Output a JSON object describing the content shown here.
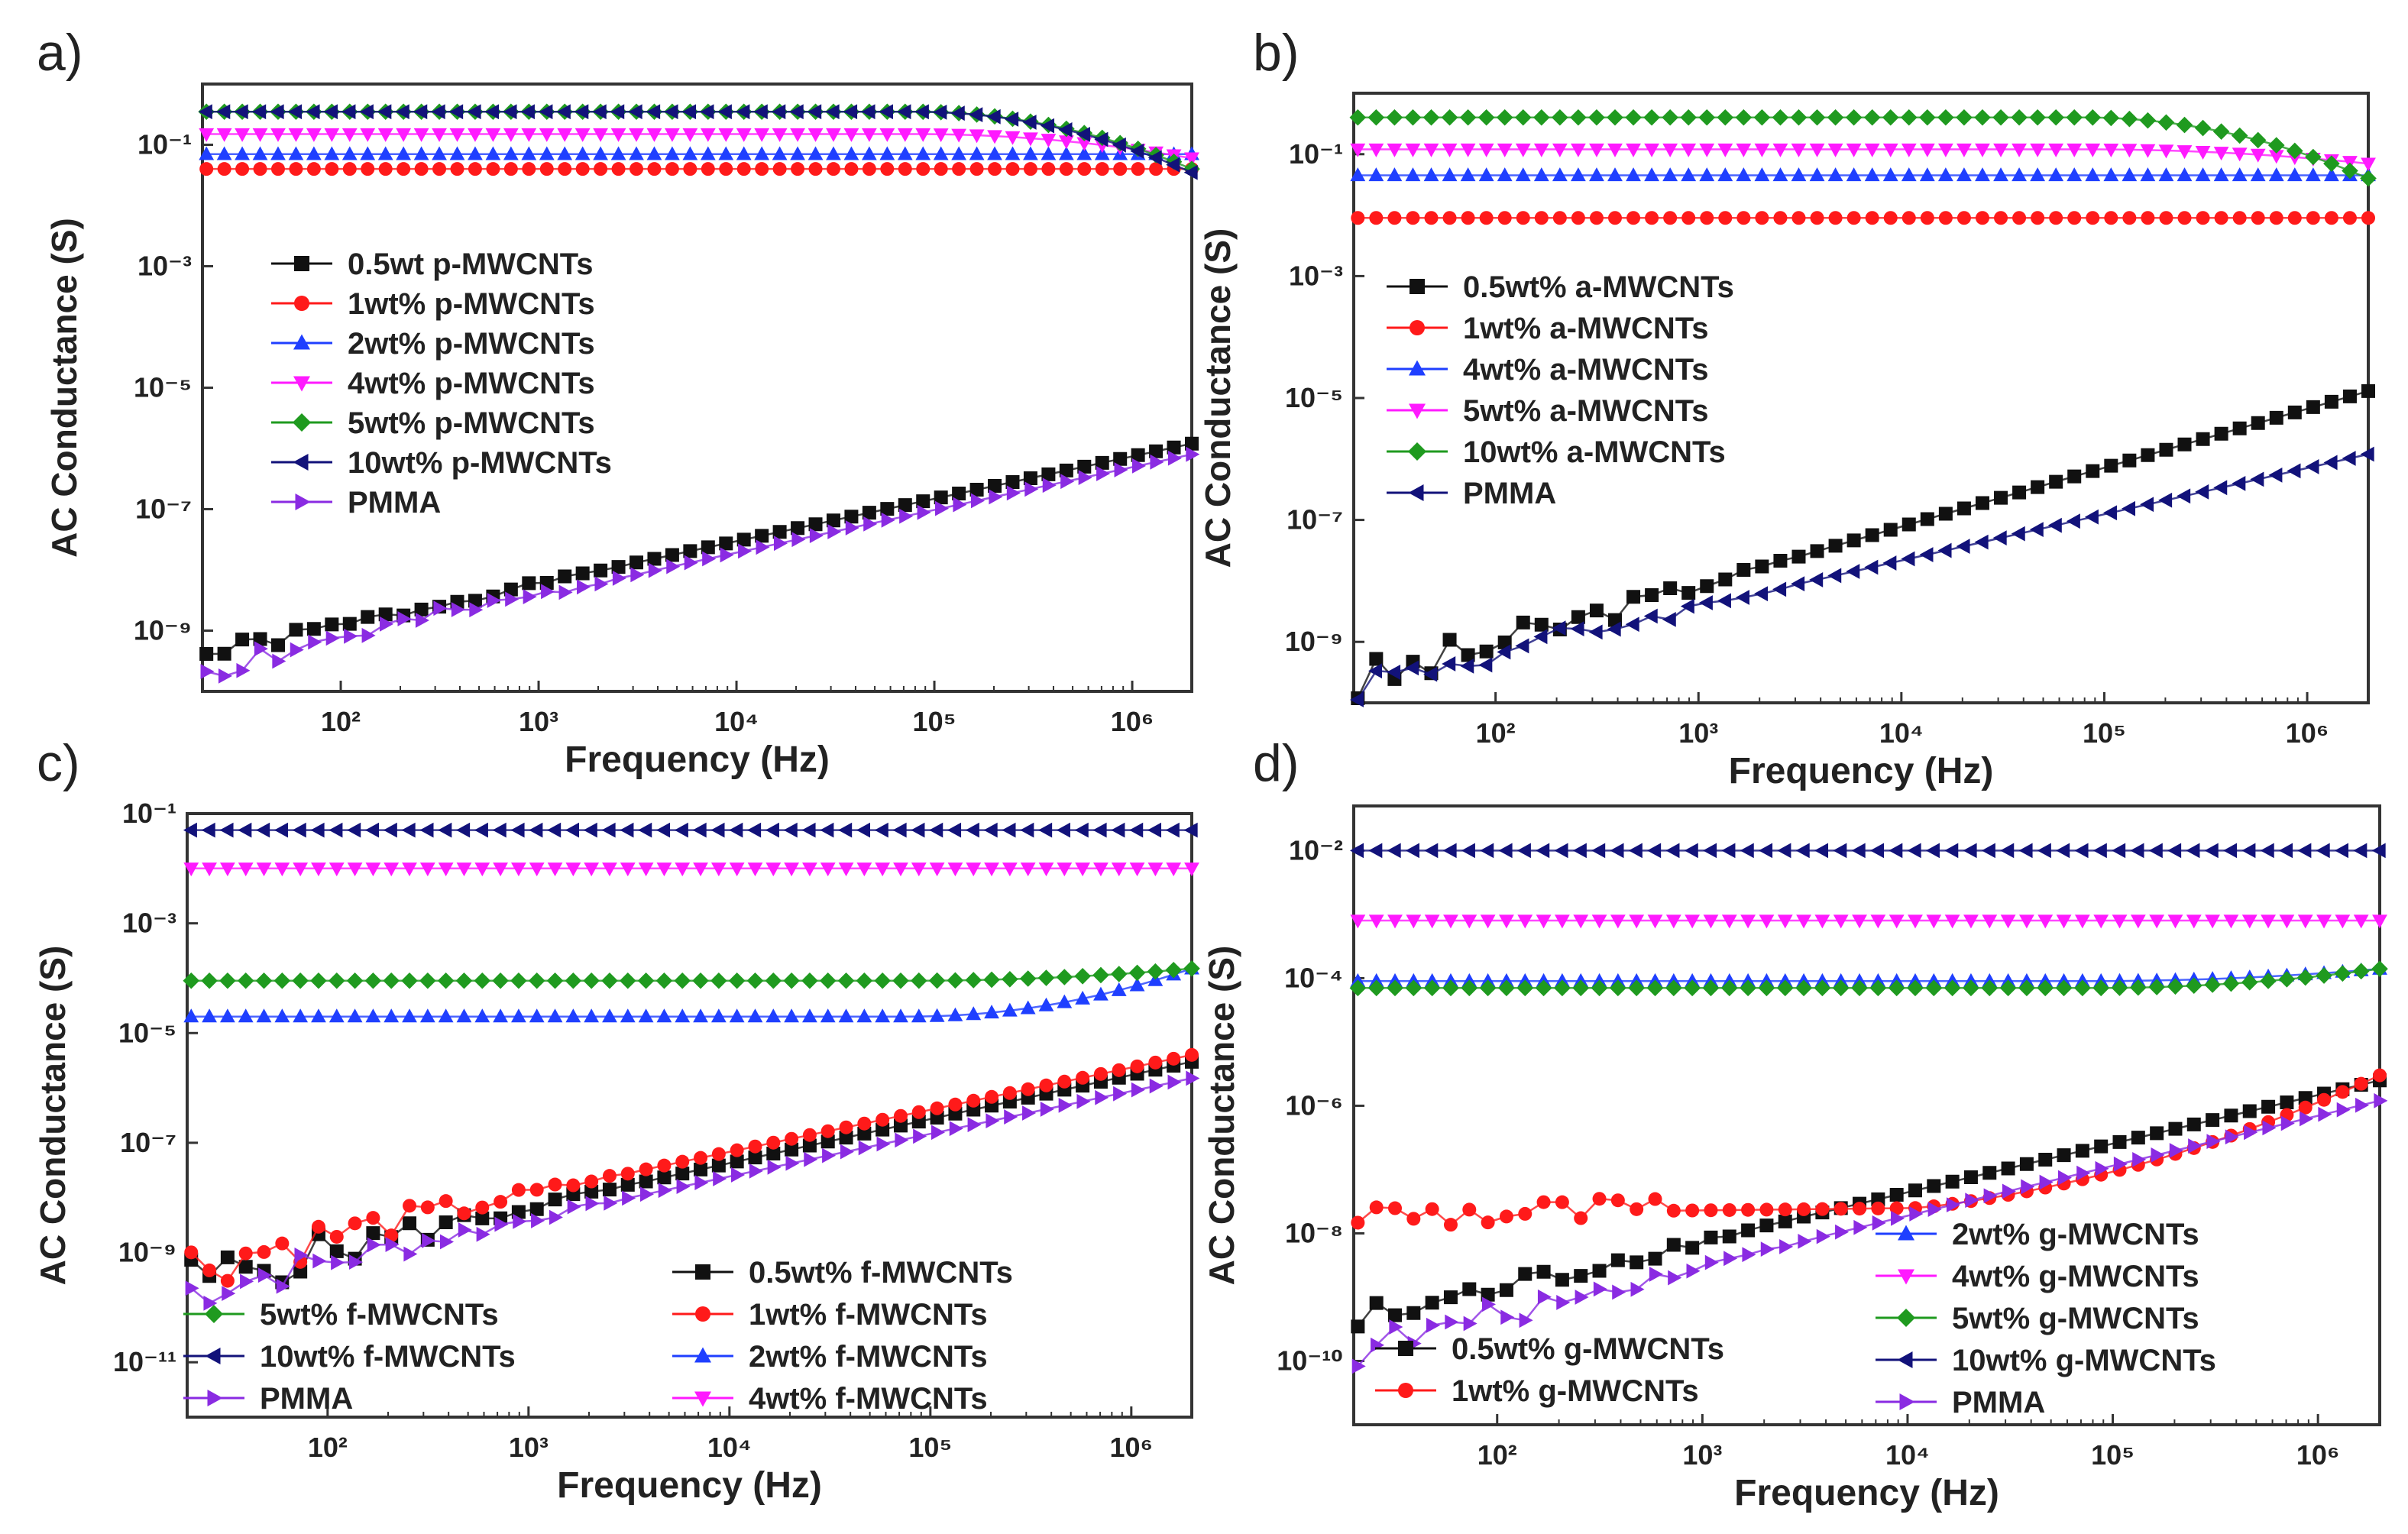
{
  "figure": {
    "background": "#ffffff",
    "axis_color": "#333333",
    "text_color": "#222222"
  },
  "colors": {
    "black": "#111111",
    "red": "#ff1a1a",
    "blue": "#1f3fff",
    "magenta": "#ff1aff",
    "green": "#1f9a1f",
    "navy": "#12127a",
    "violet": "#8a2be2"
  },
  "chart_data": [
    {
      "panel": "a)",
      "type": "scatter",
      "xscale": "log",
      "yscale": "log",
      "xlim": [
        20,
        2000000
      ],
      "ylim": [
        1e-10,
        1
      ],
      "xticks": [
        100,
        1000,
        10000,
        100000,
        1000000
      ],
      "xtick_labels": [
        "10²",
        "10³",
        "10⁴",
        "10⁵",
        "10⁶"
      ],
      "yticks": [
        1e-09,
        1e-07,
        1e-05,
        0.001,
        0.1
      ],
      "ytick_labels": [
        "10⁻⁹",
        "10⁻⁷",
        "10⁻⁵",
        "10⁻³",
        "10⁻¹"
      ],
      "xlabel": "Frequency (Hz)",
      "ylabel": "AC Conductance (S)",
      "legend_position": "center-left",
      "series": [
        {
          "name": "0.5wt p-MWCNTs",
          "marker": "square",
          "color": "#111111",
          "kind": "power",
          "y_start": 4e-10,
          "y_end": 1.2e-06,
          "noise": 0.15,
          "seed": 1
        },
        {
          "name": "1wt% p-MWCNTs",
          "marker": "circle",
          "color": "#ff1a1a",
          "kind": "flat",
          "value": 0.04
        },
        {
          "name": "2wt% p-MWCNTs",
          "marker": "triangle-up",
          "color": "#1f3fff",
          "kind": "flat",
          "value": 0.07
        },
        {
          "name": "4wt% p-MWCNTs",
          "marker": "triangle-down",
          "color": "#ff1aff",
          "kind": "flat",
          "value": 0.15,
          "tail_end": 0.06
        },
        {
          "name": "5wt% p-MWCNTs",
          "marker": "diamond",
          "color": "#1f9a1f",
          "kind": "flat",
          "value": 0.35,
          "tail_end": 0.04
        },
        {
          "name": "10wt% p-MWCNTs",
          "marker": "triangle-left",
          "color": "#12127a",
          "kind": "flat",
          "value": 0.35,
          "tail_end": 0.035
        },
        {
          "name": "PMMA",
          "marker": "triangle-right",
          "color": "#8a2be2",
          "kind": "power",
          "y_start": 2.5e-10,
          "y_end": 8e-07,
          "noise": 0.3,
          "seed": 2
        }
      ]
    },
    {
      "panel": "b)",
      "type": "scatter",
      "xscale": "log",
      "yscale": "log",
      "xlim": [
        20,
        2000000
      ],
      "ylim": [
        1e-10,
        1
      ],
      "xticks": [
        100,
        1000,
        10000,
        100000,
        1000000
      ],
      "xtick_labels": [
        "10²",
        "10³",
        "10⁴",
        "10⁵",
        "10⁶"
      ],
      "yticks": [
        1e-09,
        1e-07,
        1e-05,
        0.001,
        0.1
      ],
      "ytick_labels": [
        "10⁻⁹",
        "10⁻⁷",
        "10⁻⁵",
        "10⁻³",
        "10⁻¹"
      ],
      "xlabel": "Frequency (Hz)",
      "ylabel": "AC Conductance (S)",
      "legend_position": "center-left",
      "series": [
        {
          "name": "0.5wt% a-MWCNTs",
          "marker": "square",
          "color": "#111111",
          "kind": "power",
          "y_start": 2e-10,
          "y_end": 1.3e-05,
          "noise": 0.4,
          "seed": 3
        },
        {
          "name": "1wt% a-MWCNTs",
          "marker": "circle",
          "color": "#ff1a1a",
          "kind": "flat",
          "value": 0.009
        },
        {
          "name": "4wt% a-MWCNTs",
          "marker": "triangle-up",
          "color": "#1f3fff",
          "kind": "flat",
          "value": 0.045
        },
        {
          "name": "5wt% a-MWCNTs",
          "marker": "triangle-down",
          "color": "#ff1aff",
          "kind": "flat",
          "value": 0.12,
          "tail_end": 0.07
        },
        {
          "name": "10wt% a-MWCNTs",
          "marker": "diamond",
          "color": "#1f9a1f",
          "kind": "flat",
          "value": 0.4,
          "tail_end": 0.04
        },
        {
          "name": "PMMA",
          "marker": "triangle-left",
          "color": "#12127a",
          "kind": "power",
          "y_start": 2e-10,
          "y_end": 1.2e-06,
          "noise": 0.35,
          "seed": 4
        }
      ]
    },
    {
      "panel": "c)",
      "type": "scatter",
      "xscale": "log",
      "yscale": "log",
      "xlim": [
        20,
        2000000
      ],
      "ylim": [
        1e-12,
        0.1
      ],
      "xticks": [
        100,
        1000,
        10000,
        100000,
        1000000
      ],
      "xtick_labels": [
        "10²",
        "10³",
        "10⁴",
        "10⁵",
        "10⁶"
      ],
      "yticks": [
        1e-11,
        1e-09,
        1e-07,
        1e-05,
        0.001,
        0.1
      ],
      "ytick_labels": [
        "10⁻¹¹",
        "10⁻⁹",
        "10⁻⁷",
        "10⁻⁵",
        "10⁻³",
        "10⁻¹"
      ],
      "xlabel": "Frequency (Hz)",
      "ylabel": "AC Conductance (S)",
      "legend_position": "bottom",
      "series": [
        {
          "name": "0.5wt% f-MWCNTs",
          "marker": "square",
          "color": "#111111",
          "kind": "power",
          "y_start": 3e-10,
          "y_end": 3e-06,
          "noise": 0.5,
          "seed": 5
        },
        {
          "name": "1wt% f-MWCNTs",
          "marker": "circle",
          "color": "#ff1a1a",
          "kind": "power",
          "y_start": 6e-10,
          "y_end": 4e-06,
          "noise": 0.5,
          "seed": 6
        },
        {
          "name": "2wt% f-MWCNTs",
          "marker": "triangle-up",
          "color": "#1f3fff",
          "kind": "flat",
          "value": 2e-05,
          "tail_end": 0.00015
        },
        {
          "name": "4wt% f-MWCNTs",
          "marker": "triangle-down",
          "color": "#ff1aff",
          "kind": "flat",
          "value": 0.01
        },
        {
          "name": "5wt% f-MWCNTs",
          "marker": "diamond",
          "color": "#1f9a1f",
          "kind": "flat",
          "value": 9e-05,
          "tail_end": 0.00015
        },
        {
          "name": "10wt% f-MWCNTs",
          "marker": "triangle-left",
          "color": "#12127a",
          "kind": "flat",
          "value": 0.05
        },
        {
          "name": "PMMA",
          "marker": "triangle-right",
          "color": "#8a2be2",
          "kind": "power",
          "y_start": 2e-10,
          "y_end": 1.5e-06,
          "noise": 0.4,
          "seed": 7
        }
      ]
    },
    {
      "panel": "d)",
      "type": "scatter",
      "xscale": "log",
      "yscale": "log",
      "xlim": [
        20,
        2000000
      ],
      "ylim": [
        1e-11,
        0.05
      ],
      "xticks": [
        100,
        1000,
        10000,
        100000,
        1000000
      ],
      "xtick_labels": [
        "10²",
        "10³",
        "10⁴",
        "10⁵",
        "10⁶"
      ],
      "yticks": [
        1e-10,
        1e-08,
        1e-06,
        0.0001,
        0.01
      ],
      "ytick_labels": [
        "10⁻¹⁰",
        "10⁻⁸",
        "10⁻⁶",
        "10⁻⁴",
        "10⁻²"
      ],
      "xlabel": "Frequency (Hz)",
      "ylabel": "AC Conductance (S)",
      "legend_position": "bottom",
      "series": [
        {
          "name": "0.5wt% g-MWCNTs",
          "marker": "square",
          "color": "#111111",
          "kind": "power",
          "y_start": 4e-10,
          "y_end": 2.5e-06,
          "noise": 0.3,
          "seed": 8
        },
        {
          "name": "1wt% g-MWCNTs",
          "marker": "circle",
          "color": "#ff1a1a",
          "kind": "curve",
          "y_start": 2e-08,
          "y_knee": 2.5e-08,
          "y_end": 3e-06,
          "noise": 0.25,
          "seed": 9
        },
        {
          "name": "2wt% g-MWCNTs",
          "marker": "triangle-up",
          "color": "#1f3fff",
          "kind": "flat",
          "value": 9e-05,
          "tail_end": 0.00014
        },
        {
          "name": "4wt% g-MWCNTs",
          "marker": "triangle-down",
          "color": "#ff1aff",
          "kind": "flat",
          "value": 0.0008
        },
        {
          "name": "5wt% g-MWCNTs",
          "marker": "diamond",
          "color": "#1f9a1f",
          "kind": "flat",
          "value": 7e-05,
          "tail_end": 0.00014
        },
        {
          "name": "10wt% g-MWCNTs",
          "marker": "triangle-left",
          "color": "#12127a",
          "kind": "flat",
          "value": 0.01
        },
        {
          "name": "PMMA",
          "marker": "triangle-right",
          "color": "#8a2be2",
          "kind": "power",
          "y_start": 1.5e-10,
          "y_end": 1.2e-06,
          "noise": 0.3,
          "seed": 10
        }
      ]
    }
  ]
}
